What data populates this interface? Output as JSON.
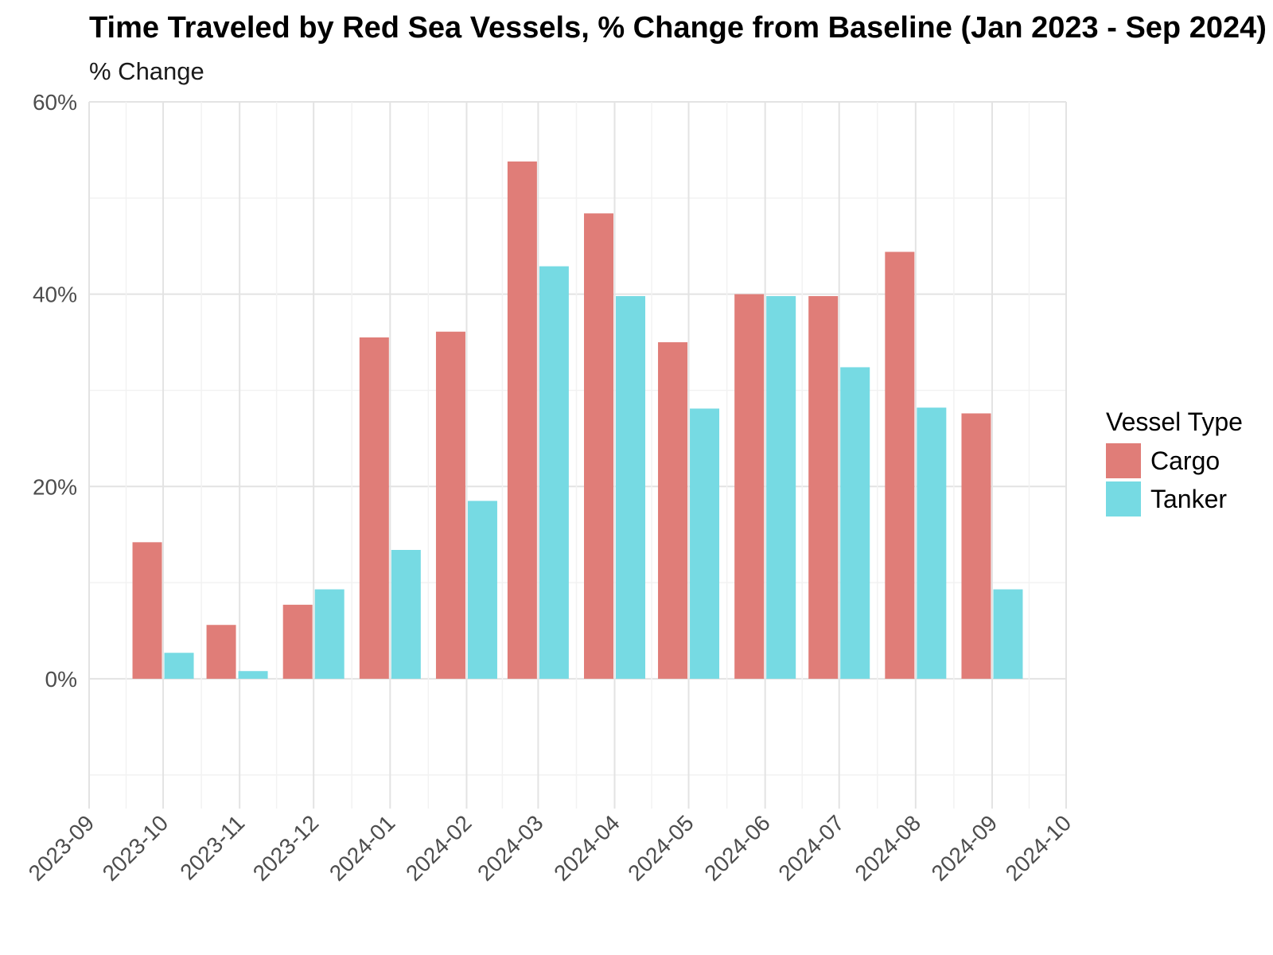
{
  "chart_data": {
    "type": "bar",
    "title": "Time Traveled by Red Sea Vessels, % Change from Baseline (Jan 2023 - Sep 2024)",
    "subtitle": "% Change",
    "xlabel": "",
    "ylabel": "",
    "x_ticks": [
      "2023-09",
      "2023-10",
      "2023-11",
      "2023-12",
      "2024-01",
      "2024-02",
      "2024-03",
      "2024-04",
      "2024-05",
      "2024-06",
      "2024-07",
      "2024-08",
      "2024-09",
      "2024-10"
    ],
    "y_ticks": [
      "0%",
      "20%",
      "40%",
      "60%"
    ],
    "xlim": [
      "2023-09-01",
      "2024-10-01"
    ],
    "ylim": [
      -13.5,
      60
    ],
    "grid": true,
    "legend": {
      "title": "Vessel Type",
      "position": "right"
    },
    "categories": [
      "2023-10",
      "2023-11",
      "2023-12",
      "2024-01",
      "2024-02",
      "2024-03",
      "2024-04",
      "2024-05",
      "2024-06",
      "2024-07",
      "2024-08",
      "2024-09"
    ],
    "bar_dates": [
      "2023-10-01",
      "2023-10-31",
      "2023-12-01",
      "2024-01-01",
      "2024-02-01",
      "2024-03-01",
      "2024-04-01",
      "2024-05-01",
      "2024-06-01",
      "2024-07-01",
      "2024-08-01",
      "2024-09-01"
    ],
    "series": [
      {
        "name": "Cargo",
        "color": "#e07d78",
        "values": [
          14.2,
          5.6,
          7.7,
          35.5,
          36.1,
          53.8,
          48.4,
          35.0,
          40.0,
          39.8,
          44.4,
          27.6
        ]
      },
      {
        "name": "Tanker",
        "color": "#76dae3",
        "values": [
          2.7,
          0.8,
          9.3,
          13.4,
          18.5,
          42.9,
          39.8,
          28.1,
          39.8,
          32.4,
          28.2,
          9.3
        ]
      }
    ]
  }
}
